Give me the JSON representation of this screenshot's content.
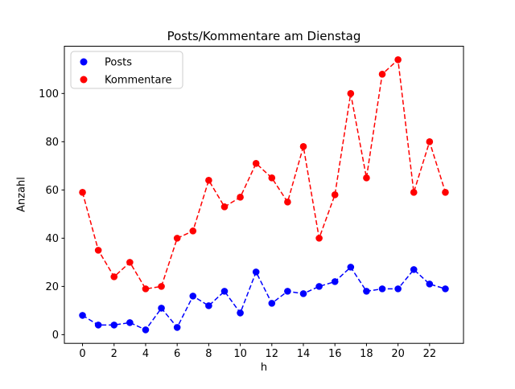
{
  "chart_data": {
    "type": "line",
    "title": "Posts/Kommentare am Dienstag",
    "xlabel": "h",
    "ylabel": "Anzahl",
    "x": [
      0,
      1,
      2,
      3,
      4,
      5,
      6,
      7,
      8,
      9,
      10,
      11,
      12,
      13,
      14,
      15,
      16,
      17,
      18,
      19,
      20,
      21,
      22,
      23
    ],
    "series": [
      {
        "name": "Posts",
        "color": "#0000ff",
        "values": [
          8,
          4,
          4,
          5,
          2,
          11,
          3,
          16,
          12,
          18,
          9,
          26,
          13,
          18,
          17,
          20,
          22,
          28,
          18,
          19,
          19,
          27,
          21,
          19
        ]
      },
      {
        "name": "Kommentare",
        "color": "#ff0000",
        "values": [
          59,
          35,
          24,
          30,
          19,
          20,
          40,
          43,
          64,
          53,
          57,
          71,
          65,
          55,
          78,
          40,
          58,
          100,
          65,
          108,
          114,
          59,
          80,
          59
        ]
      }
    ],
    "line_style": "dashed",
    "marker": "circle",
    "xlim": [
      -1.15,
      24.15
    ],
    "ylim": [
      -3.6,
      119.6
    ],
    "xticks": [
      0,
      2,
      4,
      6,
      8,
      10,
      12,
      14,
      16,
      18,
      20,
      22
    ],
    "yticks": [
      0,
      20,
      40,
      60,
      80,
      100
    ],
    "grid": false,
    "legend_position": "upper left",
    "background": "#ffffff",
    "spine_color": "#000000",
    "tick_label_color": "#000000"
  }
}
